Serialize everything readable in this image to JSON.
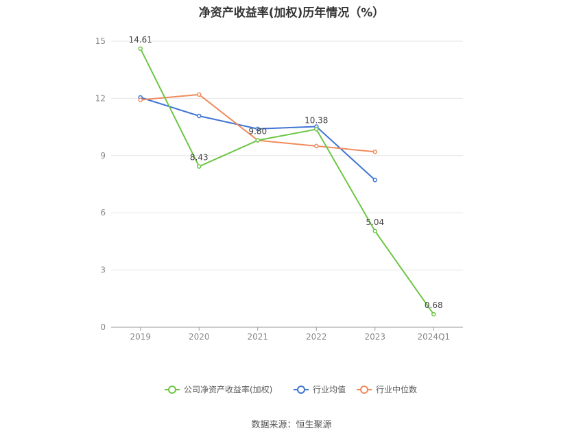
{
  "chart_data": {
    "type": "line",
    "title": "净资产收益率(加权)历年情况（%）",
    "categories": [
      "2019",
      "2020",
      "2021",
      "2022",
      "2023",
      "2024Q1"
    ],
    "ylim": [
      0,
      15
    ],
    "yticks": [
      0,
      3,
      6,
      9,
      12,
      15
    ],
    "grid": true,
    "legend_position": "bottom",
    "series": [
      {
        "name": "公司净资产收益率(加权)",
        "color": "#6cc644",
        "values": [
          14.61,
          8.43,
          9.8,
          10.38,
          5.04,
          0.68
        ],
        "labels": [
          "14.61",
          "8.43",
          "9.80",
          "10.38",
          "5.04",
          "0.68"
        ]
      },
      {
        "name": "行业均值",
        "color": "#3f74d3",
        "values": [
          12.05,
          11.08,
          10.4,
          10.52,
          7.72,
          null
        ]
      },
      {
        "name": "行业中位数",
        "color": "#f08a5d",
        "values": [
          11.92,
          12.2,
          9.8,
          9.5,
          9.2,
          null
        ]
      }
    ]
  },
  "source": "数据来源：恒生聚源"
}
